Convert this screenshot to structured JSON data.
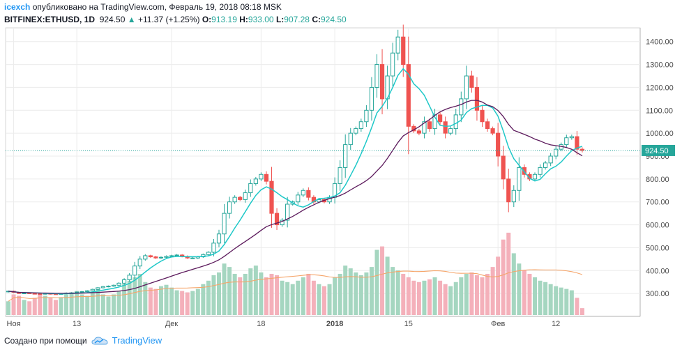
{
  "header": {
    "user": "icexch",
    "published_text": "опубликовано на TradingView.com, Февраль 19, 2018 08:18 MSK",
    "symbol": "BITFINEX:ETHUSD, 1D",
    "last": "924.50",
    "change": "+11.37 (+1.25%)",
    "o_label": "O:",
    "o_value": "913.19",
    "h_label": "H:",
    "h_value": "933.00",
    "l_label": "L:",
    "l_value": "907.28",
    "c_label": "C:",
    "c_value": "924.50"
  },
  "footer": {
    "created_with": "Создано при помощи",
    "brand": "TradingView"
  },
  "chart_data": {
    "type": "candlestick",
    "title": "BITFINEX:ETHUSD, 1D",
    "ylim": [
      200,
      1460
    ],
    "y_ticks": [
      "1400.00",
      "1300.00",
      "1200.00",
      "1100.00",
      "1000.00",
      "900.00",
      "800.00",
      "700.00",
      "600.00",
      "500.00",
      "400.00",
      "300.00"
    ],
    "x_ticks": [
      {
        "label": "Ноя",
        "index": 1
      },
      {
        "label": "13",
        "index": 13
      },
      {
        "label": "Дек",
        "index": 31
      },
      {
        "label": "18",
        "index": 48
      },
      {
        "label": "2018",
        "index": 62
      },
      {
        "label": "15",
        "index": 76
      },
      {
        "label": "Фев",
        "index": 93
      },
      {
        "label": "12",
        "index": 104
      }
    ],
    "last_price_label": "924.50",
    "last_price": 924.5,
    "colors": {
      "up": "#26a69a",
      "down": "#ef5350",
      "vol_up": "#a5d6c0",
      "vol_down": "#f4b0ba",
      "ma_fast": "#1ec8c8",
      "ma_slow": "#5c1a5c",
      "vol_ma": "#f5a56a",
      "grid": "#ececec"
    },
    "close": [
      310,
      305,
      300,
      302,
      300,
      299,
      298,
      300,
      298,
      297,
      299,
      302,
      303,
      306,
      308,
      312,
      318,
      325,
      330,
      332,
      336,
      345,
      360,
      380,
      420,
      450,
      465,
      460,
      455,
      458,
      462,
      465,
      468,
      462,
      455,
      455,
      460,
      470,
      480,
      520,
      560,
      650,
      700,
      720,
      710,
      740,
      780,
      800,
      820,
      790,
      650,
      600,
      620,
      690,
      700,
      730,
      750,
      720,
      700,
      710,
      700,
      720,
      780,
      850,
      950,
      1000,
      1020,
      1050,
      1100,
      1200,
      1300,
      1150,
      1250,
      1350,
      1420,
      1300,
      1030,
      1010,
      1000,
      1050,
      1020,
      1080,
      1050,
      1000,
      1020,
      1080,
      1150,
      1250,
      1200,
      1100,
      1050,
      1020,
      1000,
      900,
      800,
      700,
      750,
      850,
      820,
      800,
      820,
      850,
      870,
      900,
      930,
      950,
      980,
      985,
      930,
      924.5
    ],
    "volume_ratio": [
      0.2,
      0.3,
      0.28,
      0.22,
      0.2,
      0.25,
      0.3,
      0.28,
      0.25,
      0.22,
      0.26,
      0.3,
      0.32,
      0.35,
      0.3,
      0.28,
      0.33,
      0.38,
      0.3,
      0.27,
      0.3,
      0.35,
      0.45,
      0.5,
      0.55,
      0.6,
      0.48,
      0.4,
      0.38,
      0.42,
      0.44,
      0.4,
      0.36,
      0.35,
      0.33,
      0.35,
      0.38,
      0.45,
      0.5,
      0.58,
      0.62,
      0.75,
      0.7,
      0.6,
      0.55,
      0.6,
      0.68,
      0.72,
      0.62,
      0.55,
      0.6,
      0.58,
      0.5,
      0.48,
      0.45,
      0.5,
      0.55,
      0.6,
      0.5,
      0.45,
      0.42,
      0.45,
      0.55,
      0.6,
      0.72,
      0.68,
      0.62,
      0.58,
      0.62,
      0.7,
      0.95,
      1.0,
      0.85,
      0.7,
      0.65,
      0.6,
      0.55,
      0.5,
      0.48,
      0.5,
      0.52,
      0.55,
      0.5,
      0.45,
      0.42,
      0.48,
      0.55,
      0.6,
      0.62,
      0.58,
      0.55,
      0.6,
      0.7,
      0.85,
      1.1,
      1.2,
      0.9,
      0.75,
      0.65,
      0.6,
      0.55,
      0.5,
      0.48,
      0.45,
      0.42,
      0.4,
      0.38,
      0.36,
      0.25,
      0.1
    ]
  }
}
